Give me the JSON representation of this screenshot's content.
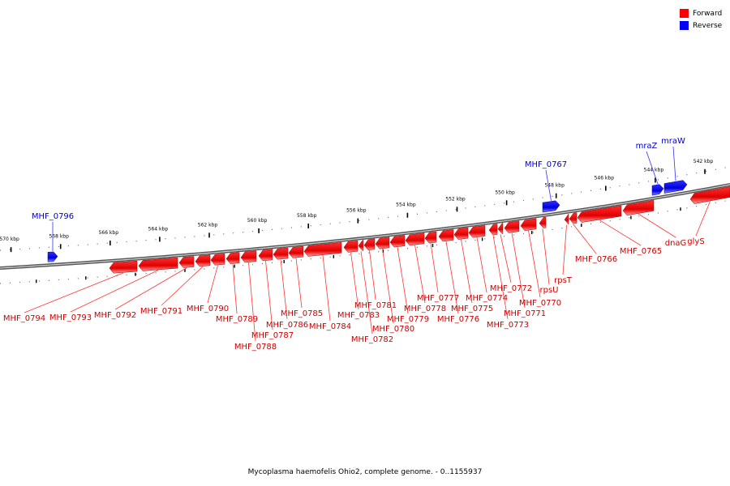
{
  "legend": {
    "forward": {
      "label": "Forward",
      "color": "#ff0000"
    },
    "reverse": {
      "label": "Reverse",
      "color": "#0000ff"
    }
  },
  "caption": "Mycoplasma haemofelis Ohio2, complete genome. - 0..1155937",
  "ticks": [
    "542 kbp",
    "544 kbp",
    "546 kbp",
    "548 kbp",
    "550 kbp",
    "552 kbp",
    "554 kbp",
    "556 kbp",
    "558 kbp",
    "560 kbp",
    "562 kbp",
    "564 kbp",
    "566 kbp",
    "568 kbp",
    "570 kbp"
  ],
  "forward_genes": [
    "glyS",
    "dnaG",
    "MHF_0765",
    "MHF_0766",
    "rpsT",
    "rpsU",
    "MHF_0770",
    "MHF_0771",
    "MHF_0772",
    "MHF_0773",
    "MHF_0774",
    "MHF_0775",
    "MHF_0776",
    "MHF_0777",
    "MHF_0778",
    "MHF_0779",
    "MHF_0780",
    "MHF_0781",
    "MHF_0782",
    "MHF_0783",
    "MHF_0784",
    "MHF_0785",
    "MHF_0786",
    "MHF_0787",
    "MHF_0788",
    "MHF_0789",
    "MHF_0790",
    "MHF_0791",
    "MHF_0792",
    "MHF_0793",
    "MHF_0794"
  ],
  "reverse_genes": [
    "mraW",
    "mraZ",
    "MHF_0767",
    "MHF_0796"
  ]
}
